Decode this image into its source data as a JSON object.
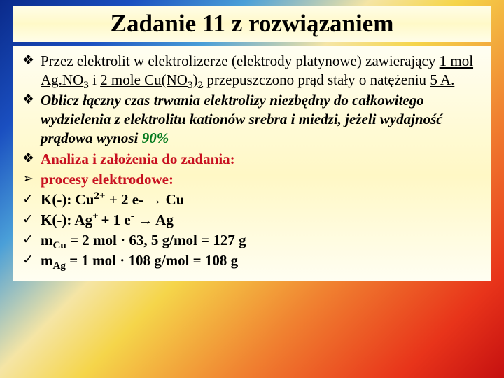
{
  "title": "Zadanie 11 z rozwiązaniem",
  "bullets": {
    "diamond": "❖",
    "chevron": "➢",
    "check": "✓"
  },
  "p1": {
    "pre": "Przez elektrolit w elektrolizerze (elektrody platynowe) zawierający ",
    "u1": "1 mol Ag.NO",
    "u1sub": "3",
    "mid1": " i ",
    "u2a": "2 mole Cu(NO",
    "u2sub1": "3",
    "u2b": ")",
    "u2sub2": "2",
    "post1": " przepuszczono prąd stały o natężeniu ",
    "u3": "5 A.",
    "tail": ""
  },
  "p2": {
    "t1": "Oblicz łączny czas trwania elektrolizy niezbędny do całkowitego wydzielenia z elektrolitu kationów srebra i miedzi, jeżeli wydajność prądowa wynosi ",
    "pct": "90%"
  },
  "p3": "Analiza i założenia do zadania:",
  "p4": "procesy elektrodowe:",
  "k1": {
    "pre": "K(-): Cu",
    "sup1": "2+",
    "mid": " +  2 e- ",
    "arrow": "→",
    "post": " Cu"
  },
  "k2": {
    "pre": "K(-): Ag",
    "sup1": "+ ",
    "mid": "+  1 e",
    "sup2": "-",
    "arrow": " →",
    "post": " Ag"
  },
  "m1": {
    "sym": "m",
    "sub": "Cu",
    "eq": "  = 2 mol · 63, 5 g/mol = 127 g"
  },
  "m2": {
    "sym": "m",
    "sub": "Ag",
    "eq": "  = 1 mol · 108 g/mol = 108 g"
  }
}
